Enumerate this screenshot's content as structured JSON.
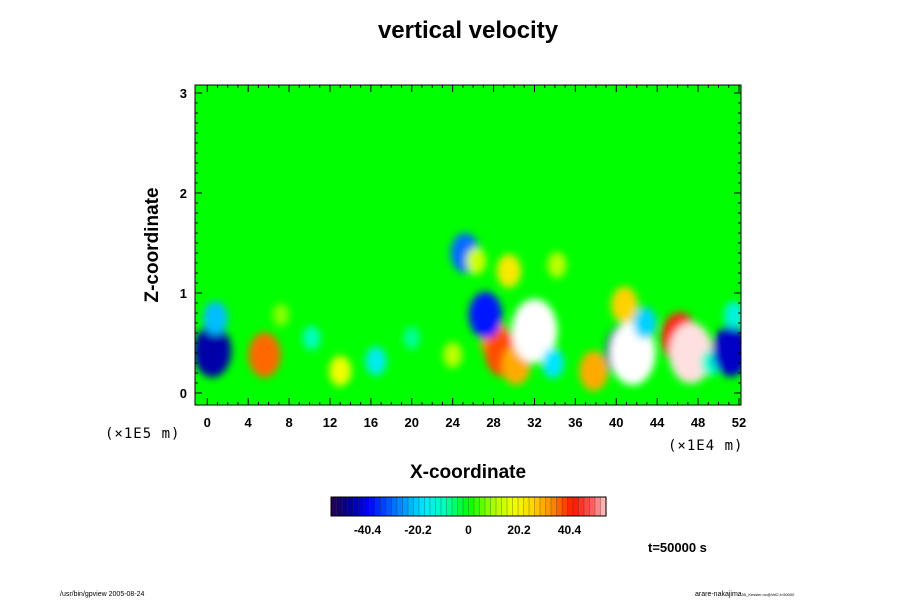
{
  "chart_data": {
    "type": "heatmap",
    "title": "vertical velocity",
    "xlabel": "X-coordinate",
    "ylabel": "Z-coordinate",
    "x_scale_label": "(×1E4 m)",
    "y_scale_label": "(×1E5 m)",
    "xlim": [
      -1.2,
      52.2
    ],
    "ylim": [
      -0.12,
      3.08
    ],
    "x_ticks": [
      "0",
      "4",
      "8",
      "12",
      "16",
      "20",
      "24",
      "28",
      "32",
      "36",
      "40",
      "44",
      "48",
      "52"
    ],
    "y_ticks": [
      "0",
      "1",
      "2",
      "3"
    ],
    "colorbar": {
      "ticks": [
        "-40.4",
        "-20.2",
        "0",
        "20.2",
        "40.4"
      ],
      "range": [
        -55,
        55
      ]
    },
    "time_label": "t=50000 s",
    "background_value": 0,
    "features": [
      {
        "x": 0.5,
        "z": 0.42,
        "value": -46
      },
      {
        "x": 0.8,
        "z": 0.75,
        "value": -22
      },
      {
        "x": 5.6,
        "z": 0.38,
        "value": 36
      },
      {
        "x": 7.2,
        "z": 0.78,
        "value": 8
      },
      {
        "x": 10.2,
        "z": 0.55,
        "value": -10
      },
      {
        "x": 13.0,
        "z": 0.22,
        "value": 18
      },
      {
        "x": 16.5,
        "z": 0.32,
        "value": -16
      },
      {
        "x": 20.0,
        "z": 0.55,
        "value": -8
      },
      {
        "x": 24.0,
        "z": 0.38,
        "value": 12
      },
      {
        "x": 25.2,
        "z": 1.4,
        "value": -30
      },
      {
        "x": 26.3,
        "z": 1.32,
        "value": 14
      },
      {
        "x": 28.2,
        "z": 0.52,
        "value": 32
      },
      {
        "x": 28.8,
        "z": 0.4,
        "value": 38
      },
      {
        "x": 27.2,
        "z": 0.78,
        "value": -38
      },
      {
        "x": 29.5,
        "z": 1.22,
        "value": 22
      },
      {
        "x": 30.2,
        "z": 0.28,
        "value": 30
      },
      {
        "x": 31.6,
        "z": 0.62,
        "value": -44
      },
      {
        "x": 32.0,
        "z": 0.62,
        "value": -60
      },
      {
        "x": 33.8,
        "z": 0.3,
        "value": -18
      },
      {
        "x": 34.2,
        "z": 1.28,
        "value": 12
      },
      {
        "x": 37.8,
        "z": 0.22,
        "value": 30
      },
      {
        "x": 40.8,
        "z": 0.42,
        "value": -46
      },
      {
        "x": 41.6,
        "z": 0.4,
        "value": -60
      },
      {
        "x": 40.8,
        "z": 0.88,
        "value": 26
      },
      {
        "x": 42.8,
        "z": 0.7,
        "value": -20
      },
      {
        "x": 46.2,
        "z": 0.55,
        "value": 44
      },
      {
        "x": 47.3,
        "z": 0.4,
        "value": 56
      },
      {
        "x": 49.2,
        "z": 0.3,
        "value": -12
      },
      {
        "x": 51.2,
        "z": 0.42,
        "value": -44
      },
      {
        "x": 51.5,
        "z": 0.78,
        "value": -14
      }
    ]
  },
  "footer": {
    "left": "/usr/bin/gpview 2005-08-24",
    "right_main": "arare-nakajima",
    "right_sub": "05_Kessler.nc@Vel2,t=50000"
  }
}
